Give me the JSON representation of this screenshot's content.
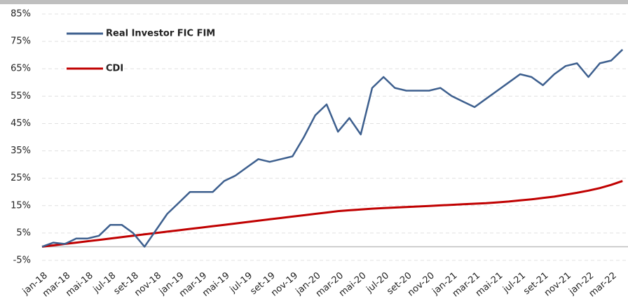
{
  "chart_data": {
    "type": "line",
    "categories": [
      "jan-18",
      null,
      "mar-18",
      null,
      "mai-18",
      null,
      "jul-18",
      null,
      "set-18",
      null,
      "nov-18",
      null,
      "jan-19",
      null,
      "mar-19",
      null,
      "mai-19",
      null,
      "jul-19",
      null,
      "set-19",
      null,
      "nov-19",
      null,
      "jan-20",
      null,
      "mar-20",
      null,
      "mai-20",
      null,
      "jul-20",
      null,
      "set-20",
      null,
      "nov-20",
      null,
      "jan-21",
      null,
      "mar-21",
      null,
      "mai-21",
      null,
      "jul-21",
      null,
      "set-21",
      null,
      "nov-21",
      null,
      "jan-22",
      null,
      "mar-22",
      null
    ],
    "series": [
      {
        "name": "Real Investor FIC FIM",
        "color": "#3d5f8e",
        "values": [
          0,
          1.5,
          1,
          3,
          3,
          4,
          8,
          8,
          5,
          0,
          6,
          12,
          16,
          20,
          20,
          20,
          24,
          26,
          29,
          32,
          31,
          32,
          33,
          40,
          48,
          52,
          42,
          47,
          41,
          58,
          62,
          58,
          57,
          57,
          57,
          58,
          55,
          53,
          51,
          54,
          57,
          60,
          63,
          62,
          59,
          63,
          66,
          67,
          62,
          67,
          68,
          72
        ]
      },
      {
        "name": "CDI",
        "color": "#c00000",
        "values": [
          0,
          0.5,
          1,
          1.5,
          2,
          2.5,
          3,
          3.5,
          4,
          4.5,
          5,
          5.5,
          6,
          6.5,
          7,
          7.5,
          8,
          8.5,
          9,
          9.5,
          10,
          10.5,
          11,
          11.5,
          12,
          12.5,
          13,
          13.3,
          13.6,
          13.9,
          14.1,
          14.3,
          14.5,
          14.7,
          14.9,
          15.1,
          15.3,
          15.5,
          15.7,
          15.9,
          16.2,
          16.5,
          16.9,
          17.3,
          17.8,
          18.3,
          19,
          19.7,
          20.5,
          21.4,
          22.6,
          24
        ]
      }
    ],
    "ylim": [
      -5,
      85
    ],
    "yticks": [
      {
        "value": -5,
        "label": "-5%"
      },
      {
        "value": 5,
        "label": "5%"
      },
      {
        "value": 15,
        "label": "15%"
      },
      {
        "value": 25,
        "label": "25%"
      },
      {
        "value": 35,
        "label": "35%"
      },
      {
        "value": 45,
        "label": "45%"
      },
      {
        "value": 55,
        "label": "55%"
      },
      {
        "value": 65,
        "label": "65%"
      },
      {
        "value": 75,
        "label": "75%"
      },
      {
        "value": 85,
        "label": "85%"
      }
    ],
    "grid": true,
    "legend": "upper left"
  }
}
